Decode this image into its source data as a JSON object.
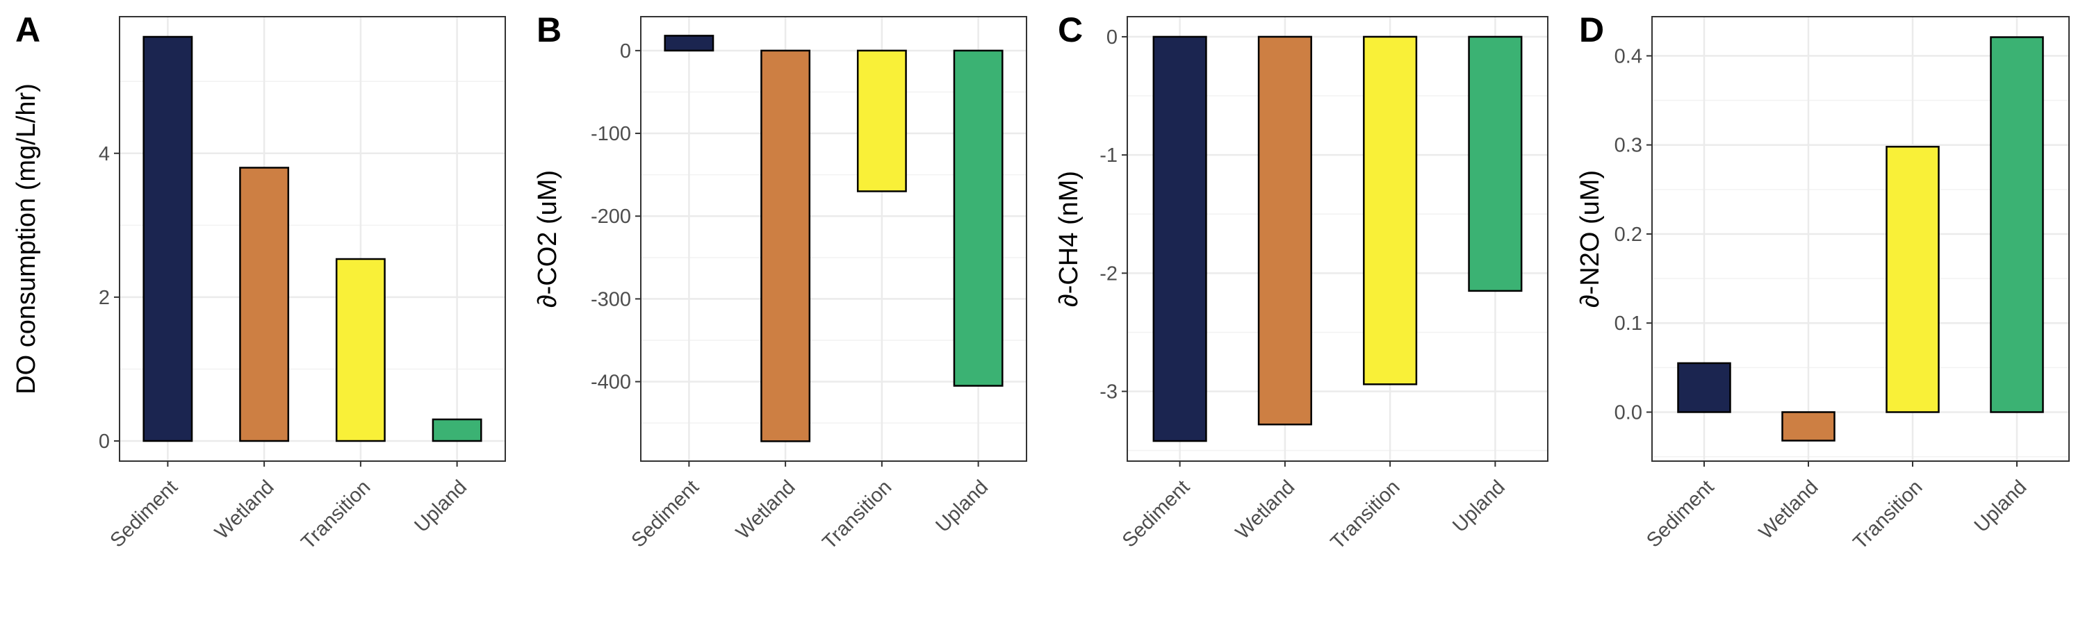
{
  "chart_data": [
    {
      "panel": "A",
      "type": "bar",
      "title": "",
      "xlabel": "",
      "ylabel": "DO consumption (mg/L/hr)",
      "categories": [
        "Sediment",
        "Wetland",
        "Transition",
        "Upland"
      ],
      "colors": [
        "#1b2550",
        "#cd7f43",
        "#f9f038",
        "#3bb273"
      ],
      "values": [
        5.62,
        3.8,
        2.53,
        0.3
      ],
      "ylim": [
        -0.28,
        5.9
      ],
      "yticks": [
        0,
        2,
        4
      ],
      "ytick_labels": [
        "0",
        "2",
        "4"
      ],
      "grid": true,
      "legend": "none"
    },
    {
      "panel": "B",
      "type": "bar",
      "title": "",
      "xlabel": "",
      "ylabel": "∂-CO2 (uM)",
      "categories": [
        "Sediment",
        "Wetland",
        "Transition",
        "Upland"
      ],
      "colors": [
        "#1b2550",
        "#cd7f43",
        "#f9f038",
        "#3bb273"
      ],
      "values": [
        18,
        -472,
        -170,
        -405
      ],
      "ylim": [
        -496,
        41
      ],
      "yticks": [
        -400,
        -300,
        -200,
        -100,
        0
      ],
      "ytick_labels": [
        "-400",
        "-300",
        "-200",
        "-100",
        "0"
      ],
      "grid": true,
      "legend": "none"
    },
    {
      "panel": "C",
      "type": "bar",
      "title": "",
      "xlabel": "",
      "ylabel": "∂-CH4 (nM)",
      "categories": [
        "Sediment",
        "Wetland",
        "Transition",
        "Upland"
      ],
      "colors": [
        "#1b2550",
        "#cd7f43",
        "#f9f038",
        "#3bb273"
      ],
      "values": [
        -3.42,
        -3.28,
        -2.94,
        -2.15
      ],
      "ylim": [
        -3.59,
        0.17
      ],
      "yticks": [
        -3,
        -2,
        -1,
        0
      ],
      "ytick_labels": [
        "-3",
        "-2",
        "-1",
        "0"
      ],
      "grid": true,
      "legend": "none"
    },
    {
      "panel": "D",
      "type": "bar",
      "title": "",
      "xlabel": "",
      "ylabel": "∂-N2O (uM)",
      "categories": [
        "Sediment",
        "Wetland",
        "Transition",
        "Upland"
      ],
      "colors": [
        "#1b2550",
        "#cd7f43",
        "#f9f038",
        "#3bb273"
      ],
      "values": [
        0.055,
        -0.032,
        0.298,
        0.421
      ],
      "ylim": [
        -0.055,
        0.444
      ],
      "yticks": [
        0,
        0.1,
        0.2,
        0.3,
        0.4
      ],
      "ytick_labels": [
        "0.0",
        "0.1",
        "0.2",
        "0.3",
        "0.4"
      ],
      "grid": true,
      "legend": "none"
    }
  ]
}
